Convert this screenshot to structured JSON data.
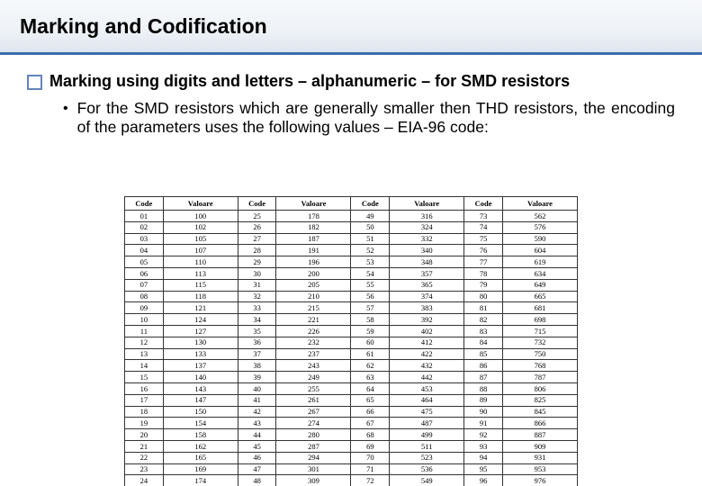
{
  "title": "Marking and Codification",
  "bullet1": "Marking using digits and letters – alphanumeric – for SMD resistors",
  "sub1": "For the SMD resistors which are generally smaller then THD resistors, the encoding of the parameters uses the following values – EIA-96 code:",
  "style": {
    "border_blue": "#3b6dad",
    "bullet_blue": "#6285b8"
  },
  "table": {
    "headers": [
      "Code",
      "Valoare",
      "Code",
      "Valoare",
      "Code",
      "Valoare",
      "Code",
      "Valoare"
    ],
    "rows": [
      [
        "01",
        "100",
        "25",
        "178",
        "49",
        "316",
        "73",
        "562"
      ],
      [
        "02",
        "102",
        "26",
        "182",
        "50",
        "324",
        "74",
        "576"
      ],
      [
        "03",
        "105",
        "27",
        "187",
        "51",
        "332",
        "75",
        "590"
      ],
      [
        "04",
        "107",
        "28",
        "191",
        "52",
        "340",
        "76",
        "604"
      ],
      [
        "05",
        "110",
        "29",
        "196",
        "53",
        "348",
        "77",
        "619"
      ],
      [
        "06",
        "113",
        "30",
        "200",
        "54",
        "357",
        "78",
        "634"
      ],
      [
        "07",
        "115",
        "31",
        "205",
        "55",
        "365",
        "79",
        "649"
      ],
      [
        "08",
        "118",
        "32",
        "210",
        "56",
        "374",
        "80",
        "665"
      ],
      [
        "09",
        "121",
        "33",
        "215",
        "57",
        "383",
        "81",
        "681"
      ],
      [
        "10",
        "124",
        "34",
        "221",
        "58",
        "392",
        "82",
        "698"
      ],
      [
        "11",
        "127",
        "35",
        "226",
        "59",
        "402",
        "83",
        "715"
      ],
      [
        "12",
        "130",
        "36",
        "232",
        "60",
        "412",
        "84",
        "732"
      ],
      [
        "13",
        "133",
        "37",
        "237",
        "61",
        "422",
        "85",
        "750"
      ],
      [
        "14",
        "137",
        "38",
        "243",
        "62",
        "432",
        "86",
        "768"
      ],
      [
        "15",
        "140",
        "39",
        "249",
        "63",
        "442",
        "87",
        "787"
      ],
      [
        "16",
        "143",
        "40",
        "255",
        "64",
        "453",
        "88",
        "806"
      ],
      [
        "17",
        "147",
        "41",
        "261",
        "65",
        "464",
        "89",
        "825"
      ],
      [
        "18",
        "150",
        "42",
        "267",
        "66",
        "475",
        "90",
        "845"
      ],
      [
        "19",
        "154",
        "43",
        "274",
        "67",
        "487",
        "91",
        "866"
      ],
      [
        "20",
        "158",
        "44",
        "280",
        "68",
        "499",
        "92",
        "887"
      ],
      [
        "21",
        "162",
        "45",
        "287",
        "69",
        "511",
        "93",
        "909"
      ],
      [
        "22",
        "165",
        "46",
        "294",
        "70",
        "523",
        "94",
        "931"
      ],
      [
        "23",
        "169",
        "47",
        "301",
        "71",
        "536",
        "95",
        "953"
      ],
      [
        "24",
        "174",
        "48",
        "309",
        "72",
        "549",
        "96",
        "976"
      ]
    ]
  }
}
